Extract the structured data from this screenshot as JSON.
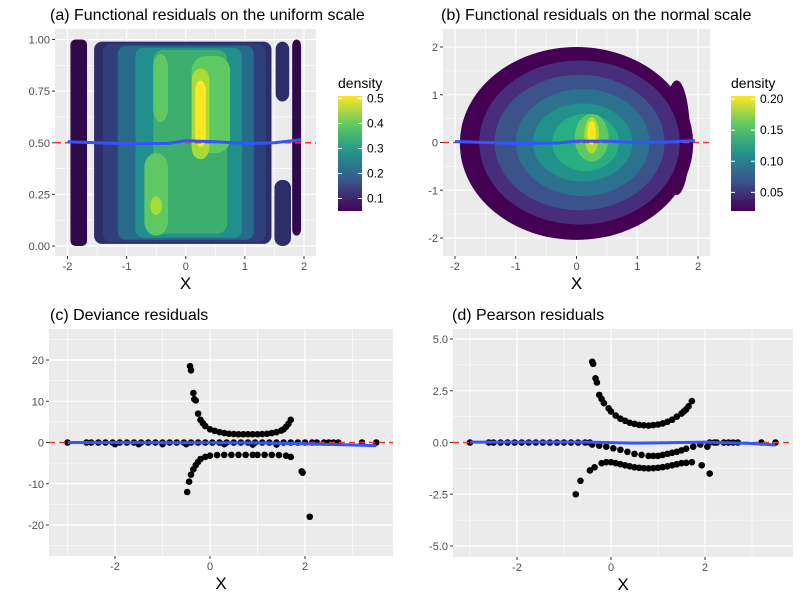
{
  "chart_data": [
    {
      "id": "a",
      "type": "heatmap",
      "title": "(a) Functional residuals on the uniform scale",
      "xlabel": "X",
      "ylabel": "",
      "xlim": [
        -2.2,
        2.2
      ],
      "ylim": [
        -0.05,
        1.05
      ],
      "x_ticks": [
        "-2",
        "-1",
        "0",
        "1",
        "2"
      ],
      "x_tick_values": [
        -2,
        -1,
        0,
        1,
        2
      ],
      "y_ticks": [
        "0.00",
        "0.25",
        "0.50",
        "0.75",
        "1.00"
      ],
      "y_tick_values": [
        0,
        0.25,
        0.5,
        0.75,
        1
      ],
      "grid": true,
      "legend": {
        "title": "density",
        "position": "right",
        "labels": [
          "0.1",
          "0.2",
          "0.3",
          "0.4",
          "0.5"
        ],
        "values": [
          0.1,
          0.2,
          0.3,
          0.4,
          0.5
        ],
        "range": [
          0.05,
          0.51
        ]
      },
      "reference_line": {
        "y": 0.5,
        "color": "#ff3030",
        "style": "dashed"
      },
      "smooth_line": {
        "color": "#3355ff",
        "points": [
          [
            -2,
            0.505
          ],
          [
            -1,
            0.495
          ],
          [
            -0.3,
            0.497
          ],
          [
            0,
            0.51
          ],
          [
            0.5,
            0.505
          ],
          [
            1,
            0.497
          ],
          [
            1.5,
            0.5
          ],
          [
            1.95,
            0.515
          ]
        ]
      },
      "peak_density": {
        "x": 0.25,
        "y": 0.65,
        "value": 0.5
      }
    },
    {
      "id": "b",
      "type": "heatmap",
      "title": "(b) Functional residuals on the normal scale",
      "xlabel": "X",
      "ylabel": "",
      "xlim": [
        -2.2,
        2.2
      ],
      "ylim": [
        -2.4,
        2.4
      ],
      "x_ticks": [
        "-2",
        "-1",
        "0",
        "1",
        "2"
      ],
      "x_tick_values": [
        -2,
        -1,
        0,
        1,
        2
      ],
      "y_ticks": [
        "-2",
        "-1",
        "0",
        "1",
        "2"
      ],
      "y_tick_values": [
        -2,
        -1,
        0,
        1,
        2
      ],
      "grid": true,
      "legend": {
        "title": "density",
        "position": "right",
        "labels": [
          "0.05",
          "0.10",
          "0.15",
          "0.20"
        ],
        "values": [
          0.05,
          0.1,
          0.15,
          0.2
        ],
        "range": [
          0.02,
          0.205
        ]
      },
      "reference_line": {
        "y": 0,
        "color": "#ff3030",
        "style": "dashed"
      },
      "smooth_line": {
        "color": "#3355ff",
        "points": [
          [
            -2,
            0.02
          ],
          [
            -1,
            -0.02
          ],
          [
            -0.3,
            -0.01
          ],
          [
            0,
            0.03
          ],
          [
            0.5,
            0.03
          ],
          [
            1,
            0.0
          ],
          [
            1.5,
            0.01
          ],
          [
            1.95,
            0.04
          ]
        ]
      },
      "peak_density": {
        "x": 0.25,
        "y": 0.2,
        "value": 0.2
      }
    },
    {
      "id": "c",
      "type": "scatter",
      "title": "(c) Deviance residuals",
      "xlabel": "X",
      "ylabel": "",
      "xlim": [
        -3.3,
        3.7
      ],
      "ylim": [
        -27,
        27
      ],
      "x_ticks": [
        "-2",
        "0",
        "2"
      ],
      "x_tick_values": [
        -2,
        0,
        2
      ],
      "y_ticks": [
        "-20",
        "-10",
        "0",
        "10",
        "20"
      ],
      "y_tick_values": [
        -20,
        -10,
        0,
        10,
        20
      ],
      "grid": true,
      "reference_line": {
        "y": 0,
        "color": "#ff3030",
        "style": "dashed"
      },
      "smooth_line": {
        "color": "#3355ff",
        "points": [
          [
            -3,
            0
          ],
          [
            0,
            -0.05
          ],
          [
            1,
            -0.1
          ],
          [
            2,
            -0.3
          ],
          [
            3,
            -0.6
          ],
          [
            3.5,
            -0.8
          ]
        ]
      },
      "points": [
        [
          -3,
          0
        ],
        [
          -2.6,
          0
        ],
        [
          -2.5,
          0
        ],
        [
          -2.35,
          0
        ],
        [
          -2.2,
          0
        ],
        [
          -2.05,
          0
        ],
        [
          -1.9,
          0
        ],
        [
          -1.75,
          0
        ],
        [
          -1.6,
          0
        ],
        [
          -1.45,
          0
        ],
        [
          -1.3,
          0
        ],
        [
          -1.15,
          0
        ],
        [
          -1.0,
          0
        ],
        [
          -0.85,
          0
        ],
        [
          -0.7,
          0
        ],
        [
          -0.55,
          0
        ],
        [
          -0.4,
          0
        ],
        [
          -0.25,
          0
        ],
        [
          -0.1,
          0
        ],
        [
          0.05,
          0
        ],
        [
          0.2,
          0
        ],
        [
          0.35,
          0
        ],
        [
          0.5,
          0
        ],
        [
          0.65,
          0
        ],
        [
          0.8,
          0
        ],
        [
          0.95,
          0
        ],
        [
          1.1,
          0
        ],
        [
          1.25,
          0
        ],
        [
          1.4,
          0
        ],
        [
          1.55,
          0
        ],
        [
          1.7,
          0
        ],
        [
          1.85,
          0
        ],
        [
          2.0,
          0
        ],
        [
          2.15,
          0
        ],
        [
          2.25,
          0
        ],
        [
          2.4,
          0
        ],
        [
          2.5,
          0
        ],
        [
          2.6,
          0
        ],
        [
          2.7,
          0
        ],
        [
          3.2,
          0
        ],
        [
          3.5,
          0
        ],
        [
          -2.0,
          -0.4
        ],
        [
          -1.5,
          -0.4
        ],
        [
          -1.0,
          -0.4
        ],
        [
          -0.5,
          -0.4
        ],
        [
          0.3,
          -0.4
        ],
        [
          0.9,
          -0.5
        ],
        [
          1.4,
          -0.5
        ],
        [
          -0.42,
          18.5
        ],
        [
          -0.4,
          17.5
        ],
        [
          -0.35,
          12
        ],
        [
          -0.33,
          10.5
        ],
        [
          -0.3,
          10.2
        ],
        [
          -0.25,
          7
        ],
        [
          -0.2,
          5.5
        ],
        [
          -0.15,
          4.7
        ],
        [
          -0.1,
          4
        ],
        [
          0,
          3.2
        ],
        [
          0.1,
          2.8
        ],
        [
          0.2,
          2.5
        ],
        [
          0.3,
          2.3
        ],
        [
          0.4,
          2.1
        ],
        [
          0.5,
          2.05
        ],
        [
          0.6,
          2
        ],
        [
          0.7,
          2
        ],
        [
          0.8,
          2
        ],
        [
          0.9,
          2
        ],
        [
          1,
          2
        ],
        [
          1.1,
          2.05
        ],
        [
          1.2,
          2.1
        ],
        [
          1.3,
          2.3
        ],
        [
          1.4,
          2.5
        ],
        [
          1.5,
          2.9
        ],
        [
          1.55,
          3.2
        ],
        [
          1.6,
          3.8
        ],
        [
          1.65,
          4.5
        ],
        [
          1.7,
          5.5
        ],
        [
          -0.48,
          -12
        ],
        [
          -0.44,
          -9.5
        ],
        [
          -0.4,
          -7.8
        ],
        [
          -0.35,
          -6.5
        ],
        [
          -0.3,
          -5.5
        ],
        [
          -0.25,
          -4.7
        ],
        [
          -0.2,
          -4
        ],
        [
          -0.1,
          -3.5
        ],
        [
          0,
          -3.2
        ],
        [
          0.15,
          -3.05
        ],
        [
          0.3,
          -3
        ],
        [
          0.45,
          -3
        ],
        [
          0.6,
          -3
        ],
        [
          0.75,
          -3
        ],
        [
          0.9,
          -3
        ],
        [
          1,
          -3
        ],
        [
          1.15,
          -3
        ],
        [
          1.3,
          -3
        ],
        [
          1.45,
          -3.05
        ],
        [
          1.6,
          -3.2
        ],
        [
          1.7,
          -3.5
        ],
        [
          1.93,
          -7
        ],
        [
          1.95,
          -7.3
        ],
        [
          2.1,
          -18
        ]
      ]
    },
    {
      "id": "d",
      "type": "scatter",
      "title": "(d) Pearson residuals",
      "xlabel": "X",
      "ylabel": "",
      "xlim": [
        -3.3,
        3.7
      ],
      "ylim": [
        -5.5,
        5.5
      ],
      "x_ticks": [
        "-2",
        "0",
        "2"
      ],
      "x_tick_values": [
        -2,
        0,
        2
      ],
      "y_ticks": [
        "-5.0",
        "-2.5",
        "0.0",
        "2.5",
        "5.0"
      ],
      "y_tick_values": [
        -5,
        -2.5,
        0,
        2.5,
        5
      ],
      "grid": true,
      "reference_line": {
        "y": 0,
        "color": "#ff3030",
        "style": "dashed"
      },
      "smooth_line": {
        "color": "#3355ff",
        "points": [
          [
            -3,
            0.02
          ],
          [
            -0.5,
            0.02
          ],
          [
            0.5,
            -0.03
          ],
          [
            1,
            -0.02
          ],
          [
            2,
            0.02
          ],
          [
            3,
            -0.05
          ],
          [
            3.5,
            -0.12
          ]
        ]
      },
      "points": [
        [
          -3,
          0
        ],
        [
          -2.6,
          0
        ],
        [
          -2.5,
          0
        ],
        [
          -2.35,
          0
        ],
        [
          -2.2,
          0
        ],
        [
          -2.05,
          0
        ],
        [
          -1.9,
          0
        ],
        [
          -1.75,
          0
        ],
        [
          -1.6,
          0
        ],
        [
          -1.45,
          0
        ],
        [
          -1.3,
          0
        ],
        [
          -1.15,
          0
        ],
        [
          -1.0,
          0
        ],
        [
          -0.85,
          0
        ],
        [
          -0.7,
          0
        ],
        [
          -0.55,
          0
        ],
        [
          -0.45,
          0
        ],
        [
          2.25,
          0
        ],
        [
          2.4,
          0
        ],
        [
          2.5,
          0
        ],
        [
          2.6,
          0
        ],
        [
          2.7,
          0
        ],
        [
          3.2,
          0
        ],
        [
          3.5,
          0
        ],
        [
          -0.4,
          3.9
        ],
        [
          -0.38,
          3.8
        ],
        [
          -0.33,
          3.1
        ],
        [
          -0.3,
          2.9
        ],
        [
          -0.25,
          2.3
        ],
        [
          -0.2,
          2.1
        ],
        [
          -0.15,
          1.9
        ],
        [
          -0.05,
          1.65
        ],
        [
          0,
          1.5
        ],
        [
          0.1,
          1.3
        ],
        [
          0.2,
          1.15
        ],
        [
          0.3,
          1.05
        ],
        [
          0.4,
          0.95
        ],
        [
          0.5,
          0.9
        ],
        [
          0.6,
          0.85
        ],
        [
          0.7,
          0.83
        ],
        [
          0.8,
          0.82
        ],
        [
          0.9,
          0.84
        ],
        [
          1,
          0.87
        ],
        [
          1.1,
          0.92
        ],
        [
          1.2,
          1.0
        ],
        [
          1.3,
          1.1
        ],
        [
          1.4,
          1.25
        ],
        [
          1.5,
          1.4
        ],
        [
          1.55,
          1.5
        ],
        [
          1.6,
          1.6
        ],
        [
          1.65,
          1.75
        ],
        [
          1.72,
          2.0
        ],
        [
          -0.75,
          -2.5
        ],
        [
          -0.65,
          -1.85
        ],
        [
          -0.45,
          -1.35
        ],
        [
          -0.35,
          -1.2
        ],
        [
          -0.2,
          -1.0
        ],
        [
          -0.1,
          -0.95
        ],
        [
          0,
          -0.95
        ],
        [
          0.1,
          -1.0
        ],
        [
          0.2,
          -1.05
        ],
        [
          0.3,
          -1.1
        ],
        [
          0.4,
          -1.15
        ],
        [
          0.5,
          -1.2
        ],
        [
          0.6,
          -1.22
        ],
        [
          0.7,
          -1.24
        ],
        [
          0.8,
          -1.25
        ],
        [
          0.9,
          -1.24
        ],
        [
          1,
          -1.22
        ],
        [
          1.1,
          -1.19
        ],
        [
          1.2,
          -1.15
        ],
        [
          1.3,
          -1.1
        ],
        [
          1.4,
          -1.05
        ],
        [
          1.5,
          -1.0
        ],
        [
          1.6,
          -0.98
        ],
        [
          1.72,
          -0.95
        ],
        [
          1.93,
          -1.1
        ],
        [
          2.1,
          -1.5
        ],
        [
          -0.4,
          -0.1
        ],
        [
          -0.25,
          -0.15
        ],
        [
          -0.1,
          -0.2
        ],
        [
          0.05,
          -0.28
        ],
        [
          0.2,
          -0.35
        ],
        [
          0.35,
          -0.45
        ],
        [
          0.5,
          -0.55
        ],
        [
          0.65,
          -0.6
        ],
        [
          0.8,
          -0.65
        ],
        [
          0.9,
          -0.65
        ],
        [
          1,
          -0.65
        ],
        [
          1.1,
          -0.6
        ],
        [
          1.2,
          -0.55
        ],
        [
          1.3,
          -0.5
        ],
        [
          1.4,
          -0.45
        ],
        [
          1.5,
          -0.38
        ],
        [
          1.6,
          -0.3
        ],
        [
          1.75,
          -0.2
        ],
        [
          1.9,
          -0.1
        ],
        [
          2.05,
          -0.2
        ],
        [
          2.1,
          0
        ],
        [
          2.2,
          0
        ]
      ]
    }
  ]
}
